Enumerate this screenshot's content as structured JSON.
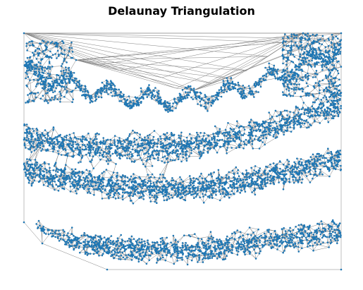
{
  "chart_data": {
    "type": "scatter",
    "title": "Delaunay Triangulation",
    "xlabel": "",
    "ylabel": "",
    "axes_visible": false,
    "grid": false,
    "legend": "none",
    "description": "Delaunay triangulation mesh of a dense point cloud forming curved bands; points drawn as blue markers, triangle edges as gray lines",
    "colors": {
      "points": "#1f77b4",
      "edges": "#808080",
      "background": "#ffffff"
    }
  }
}
